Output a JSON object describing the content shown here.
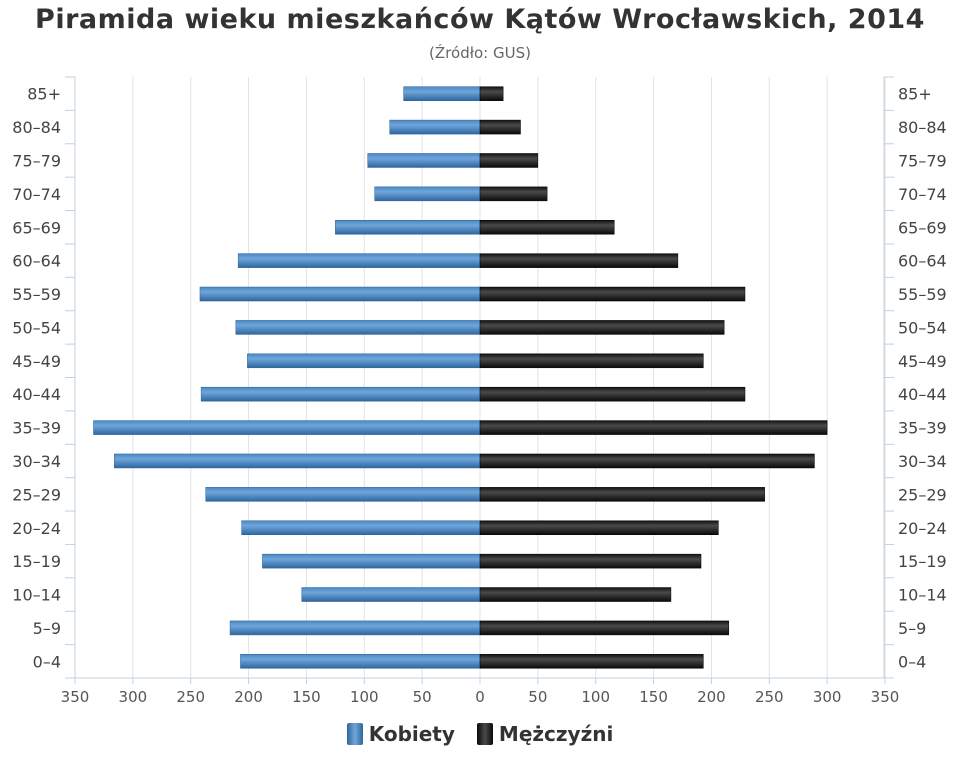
{
  "chart_data": {
    "type": "bar",
    "orientation": "horizontal",
    "title": "Piramida wieku mieszkańców Kątów Wrocławskich, 2014",
    "subtitle": "(Źródło: GUS)",
    "categories": [
      "0–4",
      "5–9",
      "10–14",
      "15–19",
      "20–24",
      "25–29",
      "30–34",
      "35–39",
      "40–44",
      "45–49",
      "50–54",
      "55–59",
      "60–64",
      "65–69",
      "70–74",
      "75–79",
      "80–84",
      "85+"
    ],
    "series": [
      {
        "name": "Kobiety",
        "color": "#3a78b4",
        "side": "left",
        "values": [
          207,
          216,
          154,
          188,
          206,
          237,
          316,
          334,
          241,
          201,
          211,
          242,
          209,
          125,
          91,
          97,
          78,
          66
        ]
      },
      {
        "name": "Mężczyźni",
        "color": "#222222",
        "side": "right",
        "values": [
          193,
          215,
          165,
          191,
          206,
          246,
          289,
          300,
          229,
          193,
          211,
          229,
          171,
          116,
          58,
          50,
          35,
          20
        ]
      }
    ],
    "x_ticks": [
      "350",
      "300",
      "250",
      "200",
      "150",
      "100",
      "50",
      "0",
      "50",
      "100",
      "150",
      "200",
      "250",
      "300",
      "350"
    ],
    "xlim": [
      -350,
      350
    ],
    "grid": true,
    "legend_position": "bottom-center"
  }
}
